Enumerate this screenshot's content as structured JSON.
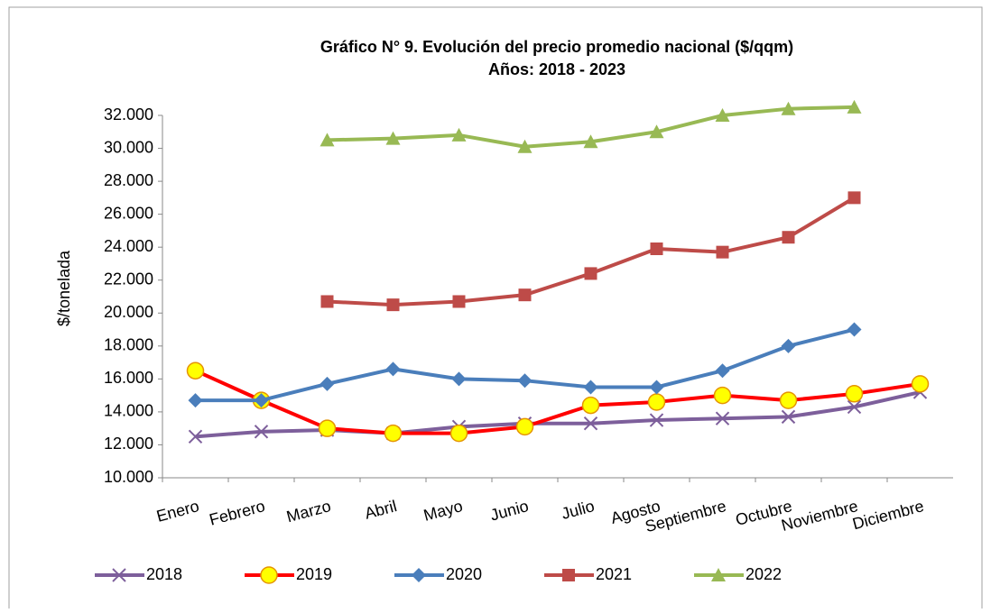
{
  "chart_data": {
    "type": "line",
    "title": "Gráfico N° 9. Evolución del precio promedio nacional ($/qqm)",
    "subtitle": "Años: 2018 - 2023",
    "y_label": "$/tonelada",
    "categories": [
      "Enero",
      "Febrero",
      "Marzo",
      "Abril",
      "Mayo",
      "Junio",
      "Julio",
      "Agosto",
      "Septiembre",
      "Octubre",
      "Noviembre",
      "Diciembre"
    ],
    "series": [
      {
        "name": "2018",
        "color": "#7d5f9b",
        "marker": "x",
        "values": [
          12500,
          12800,
          12900,
          12700,
          13100,
          13300,
          13300,
          13500,
          13600,
          13700,
          14300,
          15200
        ]
      },
      {
        "name": "2019",
        "color": "#ff0000",
        "marker": "circle",
        "marker_fill": "#ffff00",
        "values": [
          16500,
          14700,
          13000,
          12700,
          12700,
          13100,
          14400,
          14600,
          15000,
          14700,
          15100,
          15700
        ]
      },
      {
        "name": "2020",
        "color": "#4a7ebb",
        "marker": "diamond",
        "values": [
          14700,
          14700,
          15700,
          16600,
          16000,
          15900,
          15500,
          15500,
          16500,
          18000,
          19000,
          null
        ]
      },
      {
        "name": "2021",
        "color": "#be4b48",
        "marker": "square",
        "values": [
          null,
          null,
          20700,
          20500,
          20700,
          21100,
          22400,
          23900,
          23700,
          24600,
          27000,
          null
        ]
      },
      {
        "name": "2022",
        "color": "#98b954",
        "marker": "triangle",
        "values": [
          null,
          null,
          30500,
          30600,
          30800,
          30100,
          30400,
          31000,
          32000,
          32400,
          32500,
          null
        ]
      }
    ],
    "ylim": [
      10000,
      32000
    ],
    "yticks": [
      {
        "value": 10000,
        "label": "10.000"
      },
      {
        "value": 12000,
        "label": "12.000"
      },
      {
        "value": 14000,
        "label": "14.000"
      },
      {
        "value": 16000,
        "label": "16.000"
      },
      {
        "value": 18000,
        "label": "18.000"
      },
      {
        "value": 20000,
        "label": "20.000"
      },
      {
        "value": 22000,
        "label": "22.000"
      },
      {
        "value": 24000,
        "label": "24.000"
      },
      {
        "value": 26000,
        "label": "26.000"
      },
      {
        "value": 28000,
        "label": "28.000"
      },
      {
        "value": 30000,
        "label": "30.000"
      },
      {
        "value": 32000,
        "label": "32.000"
      }
    ],
    "grid": false,
    "legend": "bottom"
  }
}
